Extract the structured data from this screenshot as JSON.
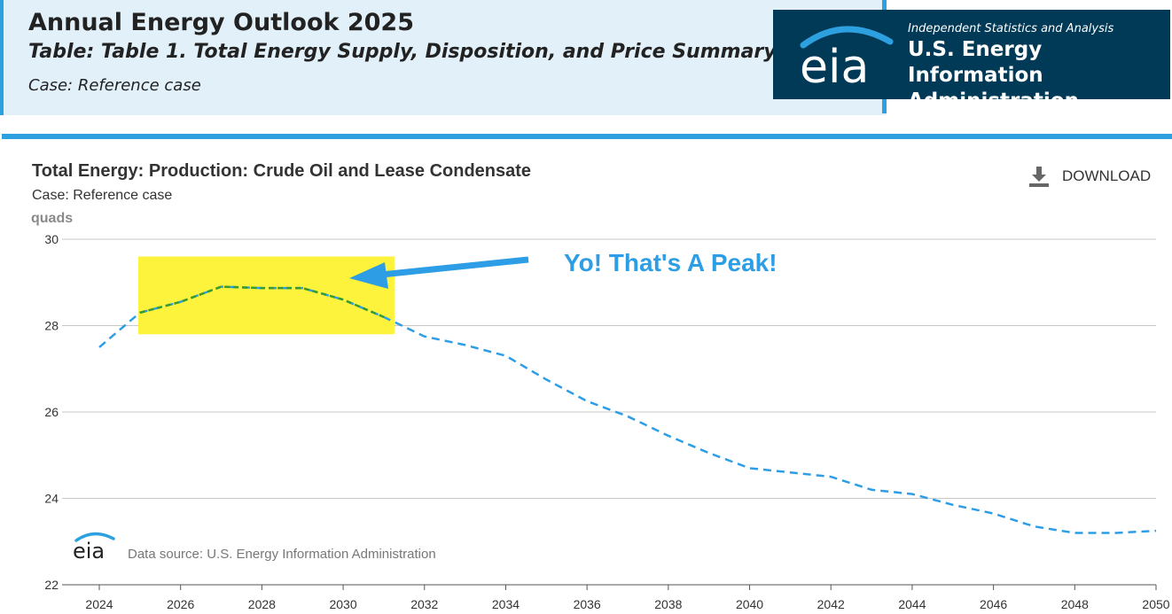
{
  "header": {
    "title": "Annual Energy Outlook 2025",
    "table": "Table: Table 1. Total Energy Supply, Disposition, and Price Summary",
    "case": "Case: Reference case",
    "logo_text": "eia",
    "brand_tagline": "Independent Statistics and Analysis",
    "brand_name_line1": "U.S. Energy Information",
    "brand_name_line2": "Administration"
  },
  "toolbar": {
    "download_label": "DOWNLOAD",
    "download_icon": "download-icon"
  },
  "footer": {
    "source": "Data source: U.S. Energy Information Administration",
    "logo_text": "eia"
  },
  "annotation": {
    "text": "Yo!  That's A Peak!",
    "highlight_color": "#fef33c",
    "arrow_color": "#2d9ee6",
    "text_color": "#2d9ee6"
  },
  "colors": {
    "accent": "#2da0e0",
    "brand_bg": "#013a57",
    "header_bg": "#e2f0fa",
    "series": "#2d9ee6",
    "peak_series": "#3a9a2a"
  },
  "chart_data": {
    "type": "line",
    "title": "Total Energy: Production: Crude Oil and Lease Condensate",
    "subtitle": "Case: Reference case",
    "ylabel": "quads",
    "xlabel": "",
    "x": [
      2024,
      2025,
      2026,
      2027,
      2028,
      2029,
      2030,
      2031,
      2032,
      2033,
      2034,
      2035,
      2036,
      2037,
      2038,
      2039,
      2040,
      2041,
      2042,
      2043,
      2044,
      2045,
      2046,
      2047,
      2048,
      2049,
      2050
    ],
    "series": [
      {
        "values": [
          27.5,
          28.3,
          28.55,
          28.9,
          28.87,
          28.87,
          28.6,
          28.2,
          27.75,
          27.55,
          27.3,
          26.75,
          26.25,
          25.9,
          25.45,
          25.05,
          24.7,
          24.6,
          24.5,
          24.2,
          24.1,
          23.85,
          23.65,
          23.35,
          23.2,
          23.2,
          23.25
        ]
      }
    ],
    "xticks": [
      2024,
      2026,
      2028,
      2030,
      2032,
      2034,
      2036,
      2038,
      2040,
      2042,
      2044,
      2046,
      2048,
      2050
    ],
    "yticks": [
      22,
      24,
      26,
      28,
      30
    ],
    "xlim": [
      2024,
      2050
    ],
    "ylim": [
      22,
      30
    ],
    "peak_range": [
      2025,
      2031
    ],
    "grid": true,
    "legend": "none"
  }
}
